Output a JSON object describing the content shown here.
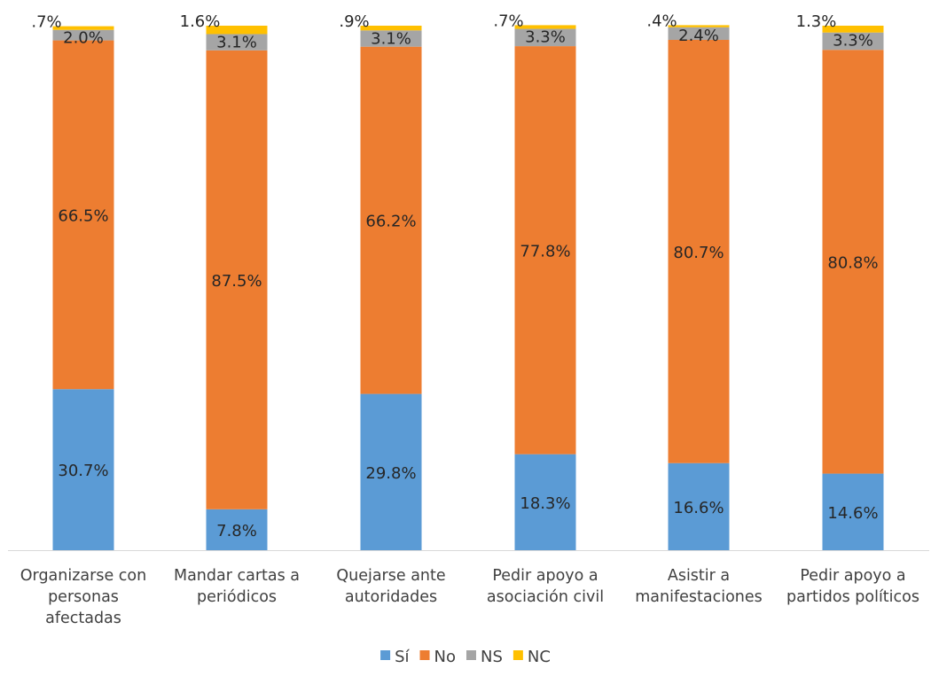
{
  "chart_data": {
    "type": "bar",
    "stacked": true,
    "percent_stacked": true,
    "title": "",
    "xlabel": "",
    "ylabel": "",
    "ylim": [
      0,
      100
    ],
    "grid": false,
    "legend_position": "bottom",
    "categories": [
      [
        "Organizarse con",
        "personas",
        "afectadas"
      ],
      [
        "Mandar cartas a",
        "periódicos"
      ],
      [
        "Quejarse ante",
        "autoridades"
      ],
      [
        "Pedir apoyo a",
        "asociación civil"
      ],
      [
        "Asistir a",
        "manifestaciones"
      ],
      [
        "Pedir apoyo a",
        "partidos políticos"
      ]
    ],
    "series": [
      {
        "name": "Sí",
        "color": "#5B9BD5",
        "values": [
          30.7,
          7.8,
          29.8,
          18.3,
          16.6,
          14.6
        ],
        "labels": [
          "30.7%",
          "7.8%",
          "29.8%",
          "18.3%",
          "16.6%",
          "14.6%"
        ]
      },
      {
        "name": "No",
        "color": "#ED7D31",
        "values": [
          66.5,
          87.5,
          66.2,
          77.8,
          80.7,
          80.8
        ],
        "labels": [
          "66.5%",
          "87.5%",
          "66.2%",
          "77.8%",
          "80.7%",
          "80.8%"
        ]
      },
      {
        "name": "NS",
        "color": "#A5A5A5",
        "values": [
          2.0,
          3.1,
          3.1,
          3.3,
          2.4,
          3.3
        ],
        "labels": [
          "2.0%",
          "3.1%",
          "3.1%",
          "3.3%",
          "2.4%",
          "3.3%"
        ]
      },
      {
        "name": "NC",
        "color": "#FFC000",
        "values": [
          0.7,
          1.6,
          0.9,
          0.7,
          0.4,
          1.3
        ],
        "labels": [
          ".7%",
          "1.6%",
          ".9%",
          ".7%",
          ".4%",
          "1.3%"
        ]
      }
    ]
  }
}
